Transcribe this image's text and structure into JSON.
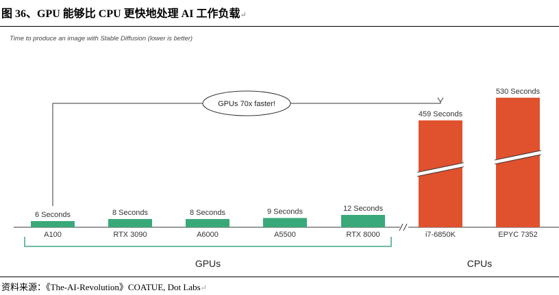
{
  "figure_title": "图 36、GPU 能够比 CPU 更快地处理 AI 工作负载",
  "return_mark": "↵",
  "source_text": "资料来源：《The-AI-Revolution》COATUE, Dot Labs",
  "colors": {
    "gpu_bar": "#3aa97a",
    "cpu_bar": "#e0512e",
    "axis": "#333333",
    "bracket": "#3aa97a"
  },
  "chart_data": {
    "type": "bar",
    "title": "",
    "subtitle": "Time to produce an image with Stable Diffusion (lower is better)",
    "unit_suffix": " Seconds",
    "categories": [
      "A100",
      "RTX 3090",
      "A6000",
      "A5500",
      "RTX 8000",
      "i7-6850K",
      "EPYC 7352"
    ],
    "values": [
      6,
      8,
      8,
      9,
      12,
      459,
      530
    ],
    "value_labels": [
      "6 Seconds",
      "8 Seconds",
      "8 Seconds",
      "9 Seconds",
      "12 Seconds",
      "459 Seconds",
      "530 Seconds"
    ],
    "groups": [
      {
        "name": "GPUs",
        "members": [
          0,
          1,
          2,
          3,
          4
        ]
      },
      {
        "name": "CPUs",
        "members": [
          5,
          6
        ]
      }
    ],
    "axis_break": true,
    "annotation": {
      "text": "GPUs 70x faster!",
      "from": "A100",
      "to": "i7-6850K"
    },
    "grid": false
  }
}
